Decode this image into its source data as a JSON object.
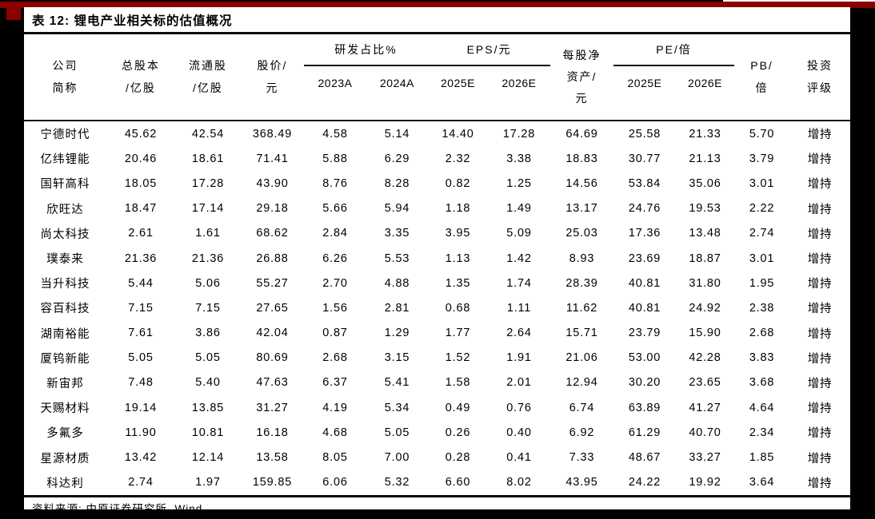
{
  "page": {
    "title": "表 12: 锂电产业相关标的估值概况",
    "source": "资料来源: 中原证券研究所, Wind"
  },
  "colors": {
    "accent_bar": "#8b0000",
    "frame": "#000000",
    "paper": "#ffffff",
    "text": "#000000"
  },
  "table": {
    "header": {
      "company": {
        "l1": "公司",
        "l2": "简称"
      },
      "total": {
        "l1": "总股本",
        "l2": "/亿股"
      },
      "float": {
        "l1": "流通股",
        "l2": "/亿股"
      },
      "price": {
        "l1": "股价/",
        "l2": "元"
      },
      "rd": {
        "group": "研发占比%",
        "c1": "2023A",
        "c2": "2024A"
      },
      "eps": {
        "group": "EPS/元",
        "c1": "2025E",
        "c2": "2026E"
      },
      "bvps": {
        "l1": "每股净",
        "l2": "资产/",
        "l3": "元"
      },
      "pe": {
        "group": "PE/倍",
        "c1": "2025E",
        "c2": "2026E"
      },
      "pb": {
        "l1": "PB/",
        "l2": "倍"
      },
      "rating": {
        "l1": "投资",
        "l2": "评级"
      }
    },
    "rows": [
      [
        "宁德时代",
        "45.62",
        "42.54",
        "368.49",
        "4.58",
        "5.14",
        "14.40",
        "17.28",
        "64.69",
        "25.58",
        "21.33",
        "5.70",
        "增持"
      ],
      [
        "亿纬锂能",
        "20.46",
        "18.61",
        "71.41",
        "5.88",
        "6.29",
        "2.32",
        "3.38",
        "18.83",
        "30.77",
        "21.13",
        "3.79",
        "增持"
      ],
      [
        "国轩高科",
        "18.05",
        "17.28",
        "43.90",
        "8.76",
        "8.28",
        "0.82",
        "1.25",
        "14.56",
        "53.84",
        "35.06",
        "3.01",
        "增持"
      ],
      [
        "欣旺达",
        "18.47",
        "17.14",
        "29.18",
        "5.66",
        "5.94",
        "1.18",
        "1.49",
        "13.17",
        "24.76",
        "19.53",
        "2.22",
        "增持"
      ],
      [
        "尚太科技",
        "2.61",
        "1.61",
        "68.62",
        "2.84",
        "3.35",
        "3.95",
        "5.09",
        "25.03",
        "17.36",
        "13.48",
        "2.74",
        "增持"
      ],
      [
        "璞泰来",
        "21.36",
        "21.36",
        "26.88",
        "6.26",
        "5.53",
        "1.13",
        "1.42",
        "8.93",
        "23.69",
        "18.87",
        "3.01",
        "增持"
      ],
      [
        "当升科技",
        "5.44",
        "5.06",
        "55.27",
        "2.70",
        "4.88",
        "1.35",
        "1.74",
        "28.39",
        "40.81",
        "31.80",
        "1.95",
        "增持"
      ],
      [
        "容百科技",
        "7.15",
        "7.15",
        "27.65",
        "1.56",
        "2.81",
        "0.68",
        "1.11",
        "11.62",
        "40.81",
        "24.92",
        "2.38",
        "增持"
      ],
      [
        "湖南裕能",
        "7.61",
        "3.86",
        "42.04",
        "0.87",
        "1.29",
        "1.77",
        "2.64",
        "15.71",
        "23.79",
        "15.90",
        "2.68",
        "增持"
      ],
      [
        "厦钨新能",
        "5.05",
        "5.05",
        "80.69",
        "2.68",
        "3.15",
        "1.52",
        "1.91",
        "21.06",
        "53.00",
        "42.28",
        "3.83",
        "增持"
      ],
      [
        "新宙邦",
        "7.48",
        "5.40",
        "47.63",
        "6.37",
        "5.41",
        "1.58",
        "2.01",
        "12.94",
        "30.20",
        "23.65",
        "3.68",
        "增持"
      ],
      [
        "天赐材料",
        "19.14",
        "13.85",
        "31.27",
        "4.19",
        "5.34",
        "0.49",
        "0.76",
        "6.74",
        "63.89",
        "41.27",
        "4.64",
        "增持"
      ],
      [
        "多氟多",
        "11.90",
        "10.81",
        "16.18",
        "4.68",
        "5.05",
        "0.26",
        "0.40",
        "6.92",
        "61.29",
        "40.70",
        "2.34",
        "增持"
      ],
      [
        "星源材质",
        "13.42",
        "12.14",
        "13.58",
        "8.05",
        "7.00",
        "0.28",
        "0.41",
        "7.33",
        "48.67",
        "33.27",
        "1.85",
        "增持"
      ],
      [
        "科达利",
        "2.74",
        "1.97",
        "159.85",
        "6.06",
        "5.32",
        "6.60",
        "8.02",
        "43.95",
        "24.22",
        "19.92",
        "3.64",
        "增持"
      ]
    ]
  }
}
